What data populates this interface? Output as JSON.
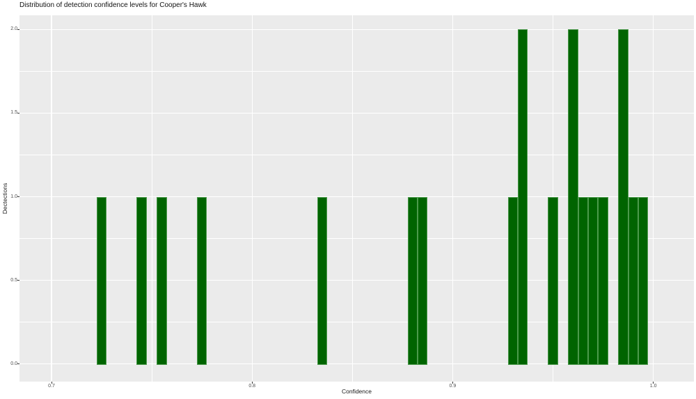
{
  "chart_data": {
    "type": "bar",
    "subtype": "histogram",
    "title": "Distribution of detection confidence levels for Cooper's Hawk",
    "xlabel": "Confidence",
    "ylabel": "Dectections",
    "legend": "none",
    "grid": "on",
    "bin_width": 0.005,
    "bins": [
      {
        "x": 0.725,
        "count": 1
      },
      {
        "x": 0.745,
        "count": 1
      },
      {
        "x": 0.755,
        "count": 1
      },
      {
        "x": 0.775,
        "count": 1
      },
      {
        "x": 0.835,
        "count": 1
      },
      {
        "x": 0.88,
        "count": 1
      },
      {
        "x": 0.885,
        "count": 1
      },
      {
        "x": 0.93,
        "count": 1
      },
      {
        "x": 0.935,
        "count": 2
      },
      {
        "x": 0.95,
        "count": 1
      },
      {
        "x": 0.96,
        "count": 2
      },
      {
        "x": 0.965,
        "count": 1
      },
      {
        "x": 0.97,
        "count": 1
      },
      {
        "x": 0.975,
        "count": 1
      },
      {
        "x": 0.985,
        "count": 2
      },
      {
        "x": 0.99,
        "count": 1
      },
      {
        "x": 0.995,
        "count": 1
      }
    ],
    "total_detections": 20,
    "x_ticks": {
      "values": [
        0.7,
        0.8,
        0.9,
        1.0
      ],
      "labels": [
        "0.7",
        "0.8",
        "0.9",
        "1.0"
      ]
    },
    "x_minor": [
      0.75,
      0.85,
      0.95
    ],
    "y_ticks": {
      "values": [
        0.0,
        0.5,
        1.0,
        1.5,
        2.0
      ],
      "labels": [
        "0.0",
        "0.5",
        "1.0",
        "1.5",
        "2.0"
      ]
    },
    "y_minor": [
      0.25,
      0.75,
      1.25,
      1.75
    ],
    "xlim": [
      0.68404,
      1.02026
    ],
    "ylim": [
      -0.1053,
      2.0845
    ],
    "colors": {
      "bar_fill": "#006400",
      "bar_stroke": "#4c9a4c",
      "panel_bg": "#EBEBEB",
      "grid": "#FFFFFF",
      "tick_label": "#4d4d4d",
      "axis_title": "#1a1a1a",
      "title": "#111111"
    }
  }
}
